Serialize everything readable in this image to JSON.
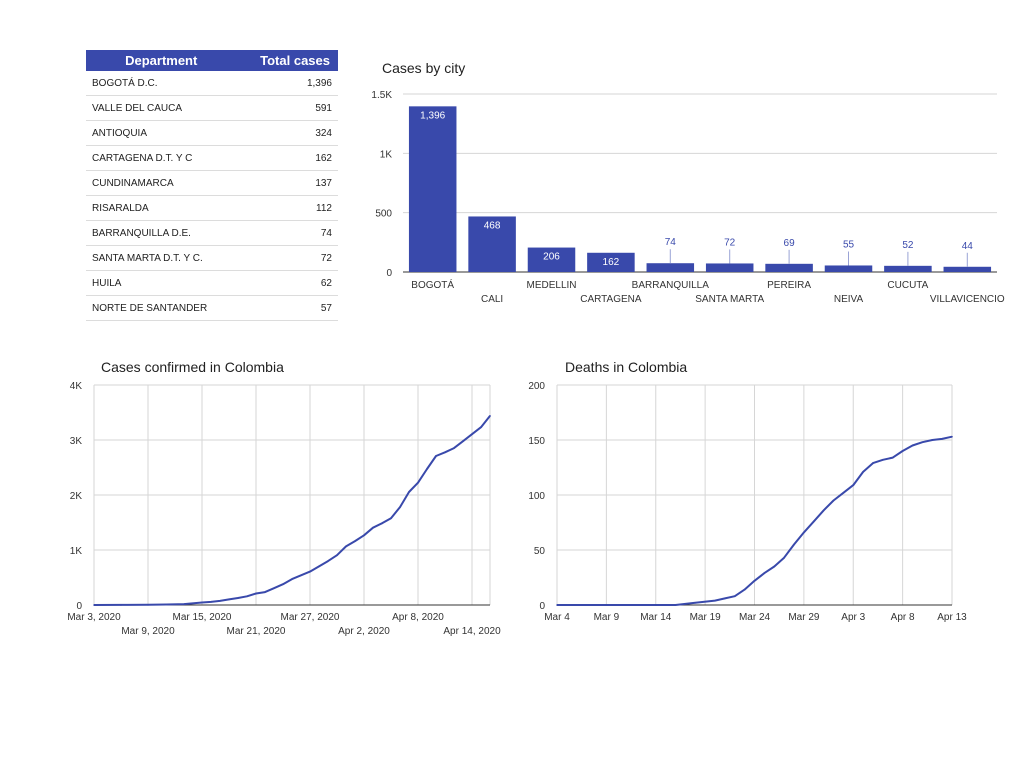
{
  "table": {
    "headers": [
      "Department",
      "Total cases"
    ],
    "rows": [
      [
        "BOGOTÁ D.C.",
        "1,396"
      ],
      [
        "VALLE DEL CAUCA",
        "591"
      ],
      [
        "ANTIOQUIA",
        "324"
      ],
      [
        "CARTAGENA D.T. Y C",
        "162"
      ],
      [
        "CUNDINAMARCA",
        "137"
      ],
      [
        "RISARALDA",
        "112"
      ],
      [
        "BARRANQUILLA D.E.",
        "74"
      ],
      [
        "SANTA MARTA D.T. Y C.",
        "72"
      ],
      [
        "HUILA",
        "62"
      ],
      [
        "NORTE DE SANTANDER",
        "57"
      ]
    ]
  },
  "colors": {
    "accent": "#3949ab",
    "header_text": "#ffffff",
    "grid": "#d6d6d6",
    "axis": "#333333"
  },
  "chart_data": [
    {
      "type": "bar",
      "title": "Cases by city",
      "categories": [
        "BOGOTÁ",
        "CALI",
        "MEDELLIN",
        "CARTAGENA",
        "BARRANQUILLA",
        "SANTA MARTA",
        "PEREIRA",
        "NEIVA",
        "CUCUTA",
        "VILLAVICENCIO"
      ],
      "values": [
        1396,
        468,
        206,
        162,
        74,
        72,
        69,
        55,
        52,
        44
      ],
      "data_labels": [
        "1,396",
        "468",
        "206",
        "162",
        "74",
        "72",
        "69",
        "55",
        "52",
        "44"
      ],
      "yticks": [
        "0",
        "500",
        "1K",
        "1.5K"
      ],
      "ytick_values": [
        0,
        500,
        1000,
        1500
      ],
      "ylim": [
        0,
        1500
      ],
      "grid": true
    },
    {
      "type": "line",
      "title": "Cases confirmed in Colombia",
      "x_start": "2020-03-03",
      "xlim": [
        "2020-03-03",
        "2020-04-16"
      ],
      "xticks": [
        {
          "label": "Mar 3, 2020",
          "date": "2020-03-03"
        },
        {
          "label": "Mar 9, 2020",
          "date": "2020-03-09"
        },
        {
          "label": "Mar 15, 2020",
          "date": "2020-03-15"
        },
        {
          "label": "Mar 21, 2020",
          "date": "2020-03-21"
        },
        {
          "label": "Mar 27, 2020",
          "date": "2020-03-27"
        },
        {
          "label": "Apr 2, 2020",
          "date": "2020-04-02"
        },
        {
          "label": "Apr 8, 2020",
          "date": "2020-04-08"
        },
        {
          "label": "Apr 14, 2020",
          "date": "2020-04-14"
        }
      ],
      "yticks": [
        "0",
        "1K",
        "2K",
        "3K",
        "4K"
      ],
      "ytick_values": [
        0,
        1000,
        2000,
        3000,
        4000
      ],
      "ylim": [
        0,
        4000
      ],
      "grid": true,
      "points": [
        [
          "2020-03-03",
          0
        ],
        [
          "2020-03-06",
          1
        ],
        [
          "2020-03-09",
          3
        ],
        [
          "2020-03-11",
          9
        ],
        [
          "2020-03-13",
          16
        ],
        [
          "2020-03-15",
          45
        ],
        [
          "2020-03-16",
          57
        ],
        [
          "2020-03-17",
          75
        ],
        [
          "2020-03-18",
          102
        ],
        [
          "2020-03-19",
          128
        ],
        [
          "2020-03-20",
          158
        ],
        [
          "2020-03-21",
          210
        ],
        [
          "2020-03-22",
          235
        ],
        [
          "2020-03-23",
          306
        ],
        [
          "2020-03-24",
          378
        ],
        [
          "2020-03-25",
          470
        ],
        [
          "2020-03-26",
          540
        ],
        [
          "2020-03-27",
          608
        ],
        [
          "2020-03-28",
          702
        ],
        [
          "2020-03-29",
          798
        ],
        [
          "2020-03-30",
          906
        ],
        [
          "2020-03-31",
          1065
        ],
        [
          "2020-04-01",
          1161
        ],
        [
          "2020-04-02",
          1267
        ],
        [
          "2020-04-03",
          1406
        ],
        [
          "2020-04-04",
          1485
        ],
        [
          "2020-04-05",
          1579
        ],
        [
          "2020-04-06",
          1780
        ],
        [
          "2020-04-07",
          2054
        ],
        [
          "2020-04-08",
          2223
        ],
        [
          "2020-04-09",
          2473
        ],
        [
          "2020-04-10",
          2709
        ],
        [
          "2020-04-11",
          2776
        ],
        [
          "2020-04-12",
          2852
        ],
        [
          "2020-04-13",
          2979
        ],
        [
          "2020-04-14",
          3105
        ],
        [
          "2020-04-15",
          3233
        ],
        [
          "2020-04-16",
          3439
        ]
      ]
    },
    {
      "type": "line",
      "title": "Deaths in Colombia",
      "xlim": [
        "2020-03-04",
        "2020-04-13"
      ],
      "xticks": [
        {
          "label": "Mar 4",
          "date": "2020-03-04"
        },
        {
          "label": "Mar 9",
          "date": "2020-03-09"
        },
        {
          "label": "Mar 14",
          "date": "2020-03-14"
        },
        {
          "label": "Mar 19",
          "date": "2020-03-19"
        },
        {
          "label": "Mar 24",
          "date": "2020-03-24"
        },
        {
          "label": "Mar 29",
          "date": "2020-03-29"
        },
        {
          "label": "Apr 3",
          "date": "2020-04-03"
        },
        {
          "label": "Apr 8",
          "date": "2020-04-08"
        },
        {
          "label": "Apr 13",
          "date": "2020-04-13"
        }
      ],
      "yticks": [
        "0",
        "50",
        "100",
        "150",
        "200"
      ],
      "ytick_values": [
        0,
        50,
        100,
        150,
        200
      ],
      "ylim": [
        0,
        200
      ],
      "grid": true,
      "points": [
        [
          "2020-03-04",
          0
        ],
        [
          "2020-03-09",
          0
        ],
        [
          "2020-03-14",
          0
        ],
        [
          "2020-03-16",
          0
        ],
        [
          "2020-03-18",
          2
        ],
        [
          "2020-03-20",
          4
        ],
        [
          "2020-03-21",
          6
        ],
        [
          "2020-03-22",
          8
        ],
        [
          "2020-03-23",
          14
        ],
        [
          "2020-03-24",
          22
        ],
        [
          "2020-03-25",
          29
        ],
        [
          "2020-03-26",
          35
        ],
        [
          "2020-03-27",
          43
        ],
        [
          "2020-03-28",
          55
        ],
        [
          "2020-03-29",
          66
        ],
        [
          "2020-03-30",
          76
        ],
        [
          "2020-03-31",
          86
        ],
        [
          "2020-04-01",
          95
        ],
        [
          "2020-04-02",
          102
        ],
        [
          "2020-04-03",
          109
        ],
        [
          "2020-04-04",
          121
        ],
        [
          "2020-04-05",
          129
        ],
        [
          "2020-04-06",
          132
        ],
        [
          "2020-04-07",
          134
        ],
        [
          "2020-04-08",
          140
        ],
        [
          "2020-04-09",
          145
        ],
        [
          "2020-04-10",
          148
        ],
        [
          "2020-04-11",
          150
        ],
        [
          "2020-04-12",
          151
        ],
        [
          "2020-04-13",
          153
        ]
      ]
    }
  ]
}
